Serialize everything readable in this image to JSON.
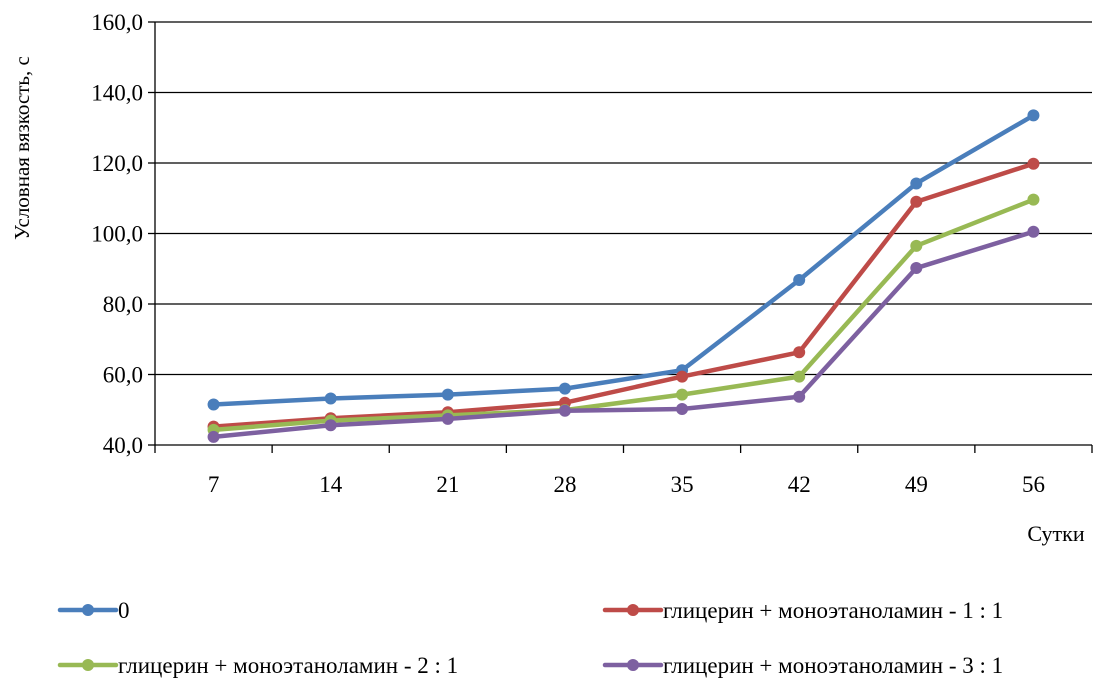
{
  "chart_data": {
    "type": "line",
    "title": "",
    "xlabel": "Сутки",
    "ylabel": "Условная вязкость, с",
    "categories": [
      "7",
      "14",
      "21",
      "28",
      "35",
      "42",
      "49",
      "56"
    ],
    "y_tick_labels": [
      "40,0",
      "60,0",
      "80,0",
      "100,0",
      "120,0",
      "140,0",
      "160,0"
    ],
    "ylim": [
      40,
      160
    ],
    "y_step": 20,
    "grid": true,
    "legend_position": "bottom",
    "series": [
      {
        "name": "0",
        "color": "#4a7ebb",
        "values": [
          51.5,
          53.2,
          54.3,
          56.0,
          61.2,
          86.8,
          114.2,
          133.5
        ]
      },
      {
        "name": "глицерин + моноэтаноламин - 1 : 1",
        "color": "#be4b48",
        "values": [
          45.2,
          47.6,
          49.3,
          52.0,
          59.4,
          66.3,
          109.0,
          119.8
        ]
      },
      {
        "name": "глицерин + моноэтаноламин - 2 : 1",
        "color": "#98b954",
        "values": [
          44.3,
          46.9,
          48.4,
          49.9,
          54.3,
          59.4,
          96.5,
          109.6
        ]
      },
      {
        "name": "глицерин + моноэтаноламин - 3 : 1",
        "color": "#7d60a0",
        "values": [
          42.3,
          45.6,
          47.4,
          49.7,
          50.2,
          53.7,
          90.2,
          100.5
        ]
      }
    ]
  }
}
